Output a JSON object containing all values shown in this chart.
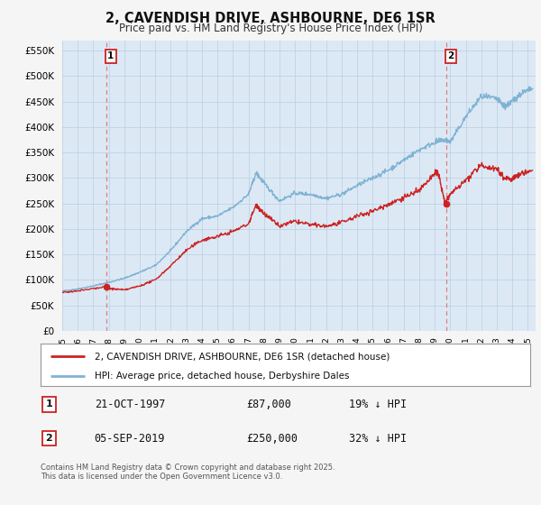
{
  "title": "2, CAVENDISH DRIVE, ASHBOURNE, DE6 1SR",
  "subtitle": "Price paid vs. HM Land Registry's House Price Index (HPI)",
  "hpi_label": "HPI: Average price, detached house, Derbyshire Dales",
  "price_label": "2, CAVENDISH DRIVE, ASHBOURNE, DE6 1SR (detached house)",
  "transaction1_date": "21-OCT-1997",
  "transaction1_price": 87000,
  "transaction1_note": "19% ↓ HPI",
  "transaction2_date": "05-SEP-2019",
  "transaction2_price": 250000,
  "transaction2_note": "32% ↓ HPI",
  "footer": "Contains HM Land Registry data © Crown copyright and database right 2025.\nThis data is licensed under the Open Government Licence v3.0.",
  "ylim": [
    0,
    560000
  ],
  "yticks": [
    0,
    50000,
    100000,
    150000,
    200000,
    250000,
    300000,
    350000,
    400000,
    450000,
    500000,
    550000
  ],
  "hpi_color": "#7fb3d3",
  "price_color": "#cc2222",
  "vline_color": "#e08080",
  "background_color": "#f5f5f5",
  "plot_bg_color": "#dce9f5",
  "grid_color": "#b8cfe0",
  "legend_border_color": "#999999",
  "label_box_edge": "#cc2222"
}
